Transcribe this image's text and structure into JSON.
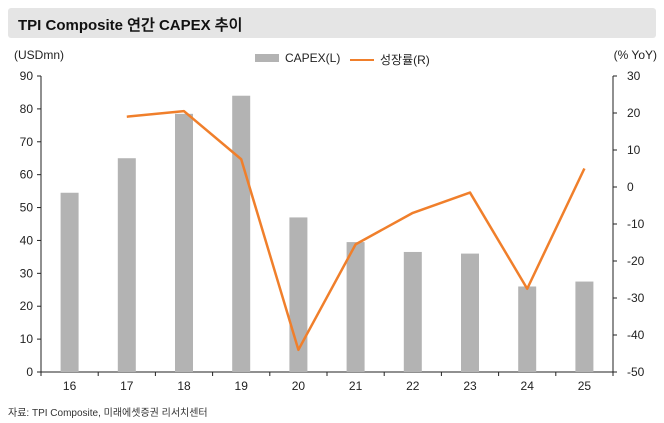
{
  "title": "TPI Composite 연간 CAPEX 추이",
  "unit_left": "(USDmn)",
  "unit_right": "(% YoY)",
  "source": "자료: TPI Composite, 미래에셋증권 리서치센터",
  "colors": {
    "bar": "#b3b3b3",
    "line": "#f07f2b",
    "axis": "#222222",
    "title_bg": "#e5e5e5"
  },
  "chart_data": {
    "type": "bar",
    "categories": [
      "16",
      "17",
      "18",
      "19",
      "20",
      "21",
      "22",
      "23",
      "24",
      "25"
    ],
    "series": [
      {
        "name": "CAPEX(L)",
        "type": "bar",
        "axis": "left",
        "values": [
          54.5,
          65,
          78.5,
          84,
          47,
          39.5,
          36.5,
          36,
          26,
          27.5
        ]
      },
      {
        "name": "성장률(R)",
        "type": "line",
        "axis": "right",
        "values": [
          null,
          19,
          20.5,
          7.5,
          -44,
          -15.5,
          -7,
          -1.5,
          -27.5,
          5
        ]
      }
    ],
    "y_left": {
      "min": 0,
      "max": 90,
      "ticks": [
        0,
        10,
        20,
        30,
        40,
        50,
        60,
        70,
        80,
        90
      ]
    },
    "y_right": {
      "min": -50,
      "max": 30,
      "ticks": [
        -50,
        -40,
        -30,
        -20,
        -10,
        0,
        10,
        20,
        30
      ]
    },
    "grid": false,
    "legend": "top-center"
  }
}
